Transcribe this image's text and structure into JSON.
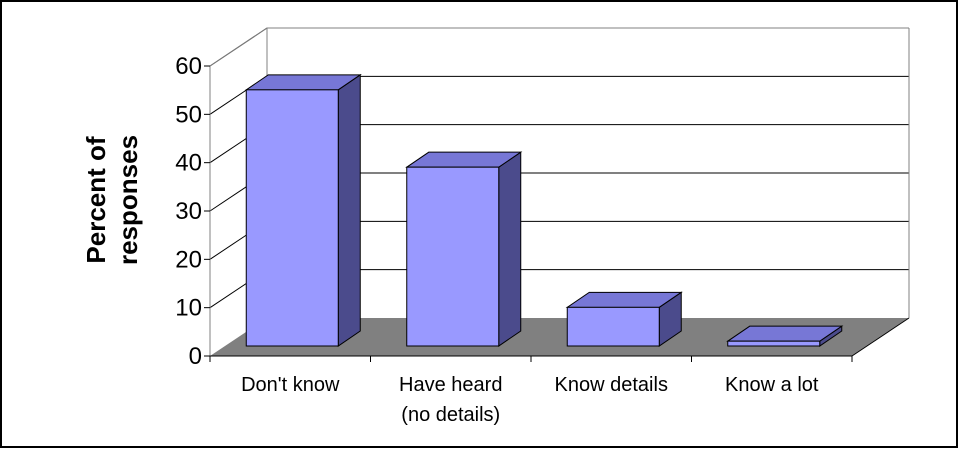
{
  "chart_data": {
    "type": "bar",
    "style": "3d-column",
    "title": "",
    "ylabel_lines": [
      "Percent of",
      "responses"
    ],
    "xlabel": "",
    "categories": [
      [
        "Don't know"
      ],
      [
        "Have heard",
        "(no details)"
      ],
      [
        "Know details"
      ],
      [
        "Know a lot"
      ]
    ],
    "values": [
      53,
      37,
      8,
      1
    ],
    "ylim": [
      0,
      60
    ],
    "yticks": [
      "0",
      "10",
      "20",
      "30",
      "40",
      "50",
      "60"
    ],
    "grid": true,
    "legend": "none",
    "colors": {
      "bar_front": "#9999ff",
      "bar_side": "#4b4b8c",
      "bar_top": "#7777d6",
      "floor": "#808080",
      "wall": "#ffffff",
      "grid": "#000000",
      "border": "#000000"
    }
  }
}
